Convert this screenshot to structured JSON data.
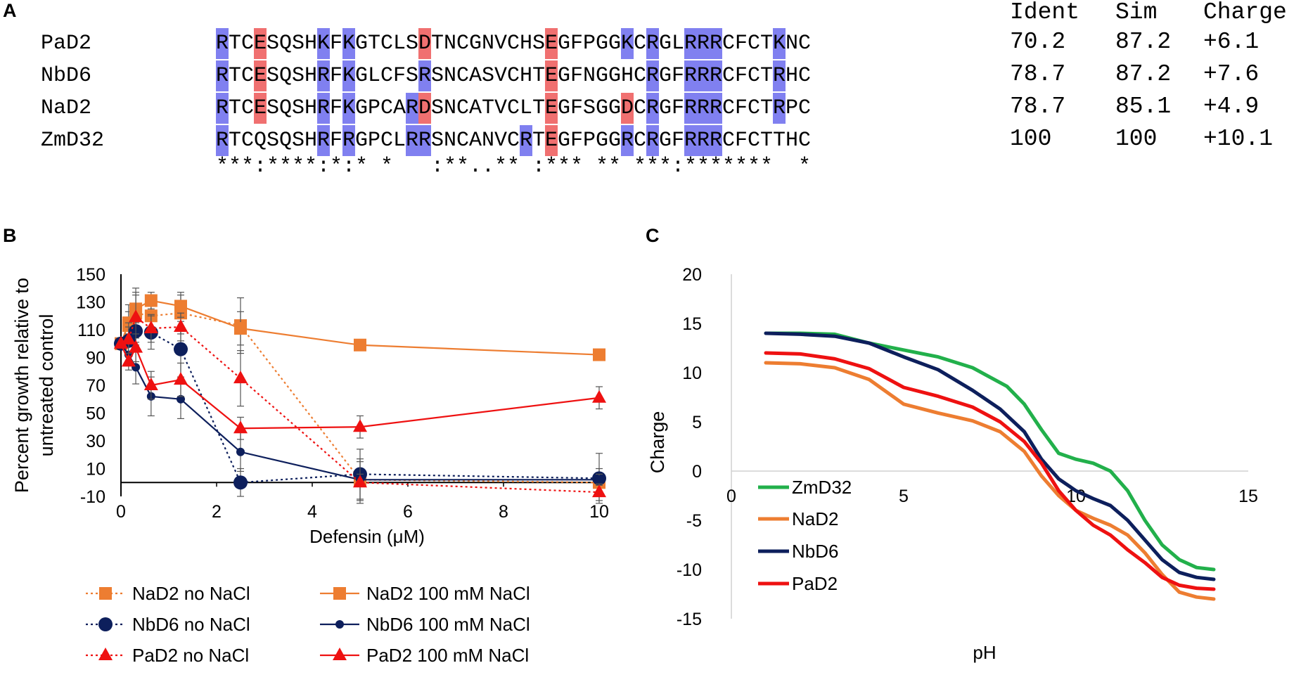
{
  "panels": {
    "a": "A",
    "b": "B",
    "c": "C"
  },
  "alignment": {
    "headers": {
      "ident": "Ident",
      "sim": "Sim",
      "charge": "Charge"
    },
    "rows": [
      {
        "name": "PaD2",
        "seq": "RTCESQSHKFKGTCLSDTNCGNVCHSEGFPGGKCRGLRRRCFCTKNC",
        "ident": "70.2",
        "sim": "87.2",
        "charge": "+6.1",
        "pos": [
          0,
          8,
          10,
          32,
          34,
          37,
          38,
          39,
          44
        ],
        "neg": [
          3,
          16,
          26
        ]
      },
      {
        "name": "NbD6",
        "seq": "RTCESQSHRFKGLCFSRSNCASVCHTEGFNGGHCRGFRRRCFCTRHC",
        "ident": "78.7",
        "sim": "87.2",
        "charge": "+7.6",
        "pos": [
          0,
          8,
          10,
          16,
          34,
          37,
          38,
          39,
          44
        ],
        "neg": [
          3,
          26
        ]
      },
      {
        "name": "NaD2",
        "seq": "RTCESQSHRFKGPCARDSNCATVCLTEGFSGGDCRGFRRRCFCTRPC",
        "ident": "78.7",
        "sim": "85.1",
        "charge": "+4.9",
        "pos": [
          0,
          8,
          10,
          15,
          34,
          37,
          38,
          39,
          44
        ],
        "neg": [
          3,
          16,
          26,
          32
        ]
      },
      {
        "name": "ZmD32",
        "seq": "RTCQSQSHRFRGPCLRRSNCANVCRTEGFPGGRCRGFRRRCFCTTHC",
        "ident": "100",
        "sim": "100",
        "charge": "+10.1",
        "pos": [
          0,
          8,
          10,
          15,
          16,
          24,
          32,
          34,
          37,
          38,
          39
        ],
        "neg": [
          26
        ]
      }
    ],
    "consensus": "***:****:*:* *   :**..** :*** ** ***:*******  *"
  },
  "colors": {
    "positive": "#8080f0",
    "negative": "#f07070",
    "orange": "#ed7d31",
    "navy": "#0d1f5c",
    "red": "#ee1111",
    "green": "#22b04b"
  },
  "chart_data": [
    {
      "type": "line",
      "panel": "B",
      "xlabel": "Defensin (μM)",
      "ylabel": [
        "Percent growth relative to",
        "untreated control"
      ],
      "xlim": [
        0,
        10
      ],
      "ylim": [
        -10,
        150
      ],
      "xticks": [
        "0",
        "2",
        "4",
        "6",
        "8",
        "10"
      ],
      "yticks": [
        "150",
        "130",
        "110",
        "90",
        "70",
        "50",
        "30",
        "10",
        "-10"
      ],
      "series": [
        {
          "name": "NaD2 no NaCl",
          "color": "orange",
          "marker": "square",
          "dotted": true,
          "x": [
            0,
            0.16,
            0.31,
            0.63,
            1.25,
            2.5,
            5,
            10
          ],
          "y": [
            100,
            113,
            122,
            120,
            122,
            113,
            2,
            0
          ],
          "err": [
            0,
            15,
            18,
            10,
            15,
            20,
            15,
            10
          ]
        },
        {
          "name": "NaD2 100 mM NaCl",
          "color": "orange",
          "marker": "square",
          "dotted": false,
          "x": [
            0,
            0.16,
            0.31,
            0.63,
            1.25,
            2.5,
            5,
            10
          ],
          "y": [
            100,
            115,
            125,
            131,
            127,
            111,
            99,
            92
          ],
          "err": [
            0,
            8,
            10,
            6,
            8,
            12,
            4,
            4
          ]
        },
        {
          "name": "NbD6 no NaCl",
          "color": "navy",
          "marker": "circle-large",
          "dotted": true,
          "x": [
            0,
            0.16,
            0.31,
            0.63,
            1.25,
            2.5,
            5,
            10
          ],
          "y": [
            100,
            102,
            109,
            108,
            96,
            0,
            6,
            3
          ],
          "err": [
            0,
            10,
            10,
            12,
            20,
            10,
            18,
            18
          ]
        },
        {
          "name": "NbD6 100 mM NaCl",
          "color": "navy",
          "marker": "circle-small",
          "dotted": false,
          "x": [
            0,
            0.16,
            0.31,
            0.63,
            1.25,
            2.5,
            5,
            10
          ],
          "y": [
            100,
            92,
            83,
            62,
            60,
            22,
            2,
            2
          ],
          "err": [
            0,
            8,
            12,
            14,
            14,
            14,
            4,
            4
          ]
        },
        {
          "name": "PaD2 no NaCl",
          "color": "red",
          "marker": "triangle",
          "dotted": true,
          "x": [
            0,
            0.16,
            0.31,
            0.63,
            1.25,
            2.5,
            5,
            10
          ],
          "y": [
            100,
            103,
            119,
            111,
            112,
            75,
            0,
            -7
          ],
          "err": [
            0,
            12,
            18,
            10,
            10,
            20,
            15,
            6
          ]
        },
        {
          "name": "PaD2 100 mM NaCl",
          "color": "red",
          "marker": "triangle",
          "dotted": false,
          "x": [
            0,
            0.16,
            0.31,
            0.63,
            1.25,
            2.5,
            5,
            10
          ],
          "y": [
            100,
            87,
            97,
            70,
            74,
            39,
            40,
            61
          ],
          "err": [
            0,
            6,
            10,
            10,
            12,
            8,
            8,
            8
          ]
        }
      ]
    },
    {
      "type": "line",
      "panel": "C",
      "xlabel": "pH",
      "ylabel": "Charge",
      "xlim": [
        0,
        15
      ],
      "ylim": [
        -15,
        20
      ],
      "xticks": [
        "0",
        "5",
        "10",
        "15"
      ],
      "yticks": [
        "20",
        "15",
        "10",
        "5",
        "0",
        "-5",
        "-10",
        "-15"
      ],
      "series": [
        {
          "name": "ZmD32",
          "color": "green",
          "x": [
            1,
            2,
            3,
            4,
            5,
            6,
            7,
            8,
            8.5,
            9,
            9.5,
            10,
            10.5,
            11,
            11.5,
            12,
            12.5,
            13,
            13.5,
            14
          ],
          "y": [
            14,
            14,
            13.9,
            13,
            12.3,
            11.6,
            10.5,
            8.6,
            6.8,
            4.2,
            1.8,
            1.2,
            0.8,
            0,
            -2,
            -5,
            -7.5,
            -9,
            -9.8,
            -10
          ]
        },
        {
          "name": "NaD2",
          "color": "orange",
          "x": [
            1,
            2,
            3,
            4,
            5,
            6,
            7,
            7.8,
            8.5,
            9,
            9.5,
            10,
            10.5,
            11,
            11.5,
            12,
            12.5,
            13,
            13.5,
            14
          ],
          "y": [
            11,
            10.9,
            10.5,
            9.3,
            6.8,
            5.9,
            5.1,
            4,
            2,
            -0.5,
            -2.5,
            -4,
            -4.8,
            -5.5,
            -6.5,
            -8.3,
            -10.5,
            -12.3,
            -12.8,
            -13
          ]
        },
        {
          "name": "NbD6",
          "color": "navy",
          "x": [
            1,
            2,
            3,
            4,
            5,
            6,
            7,
            7.8,
            8.5,
            9,
            9.5,
            10,
            10.5,
            11,
            11.5,
            12,
            12.5,
            13,
            13.5,
            14
          ],
          "y": [
            14,
            13.9,
            13.7,
            13,
            11.6,
            10.3,
            8.2,
            6.3,
            4,
            1.2,
            -0.8,
            -2,
            -2.8,
            -3.5,
            -5,
            -7,
            -9,
            -10.3,
            -10.8,
            -11
          ]
        },
        {
          "name": "PaD2",
          "color": "red",
          "x": [
            1,
            2,
            3,
            4,
            5,
            6,
            7,
            7.8,
            8.5,
            9,
            9.5,
            10,
            10.5,
            11,
            11.5,
            12,
            12.5,
            13,
            13.5,
            14
          ],
          "y": [
            12,
            11.9,
            11.4,
            10.4,
            8.5,
            7.6,
            6.5,
            5,
            3,
            0.8,
            -2,
            -4,
            -5.5,
            -6.5,
            -8,
            -9.3,
            -10.8,
            -11.6,
            -11.9,
            -12
          ]
        }
      ]
    }
  ]
}
